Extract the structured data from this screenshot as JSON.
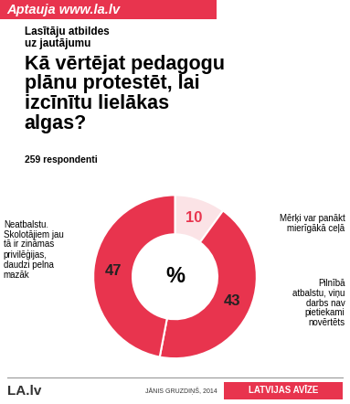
{
  "chart_data": {
    "type": "pie",
    "header": "Aptauja www.la.lv",
    "subtitle": "Lasītāju atbildes uz jautājumu",
    "title": "Kā vērtējat pedagogu plānu protestēt, lai izcīnītu lielākas algas?",
    "note": "259 respondenti",
    "categories": [
      "Mērķi var panākt mierīgākā ceļā",
      "Pilnībā atbalstu, viņu darbs nav pietiekami novērtēts",
      "Neatbalstu. Skolotājiem jau tā ir zināmas privilēģijas, daudzi pelna mazāk"
    ],
    "values": [
      10,
      43,
      47
    ],
    "colors": [
      "#fbe3e6",
      "#e8344e",
      "#e8344e"
    ],
    "data_labels": true,
    "center_label": "%",
    "source_site": "LA.lv",
    "author": "JĀNIS GRUZDIŅŠ, 2014",
    "publisher": "LATVIJAS AVĪZE"
  }
}
